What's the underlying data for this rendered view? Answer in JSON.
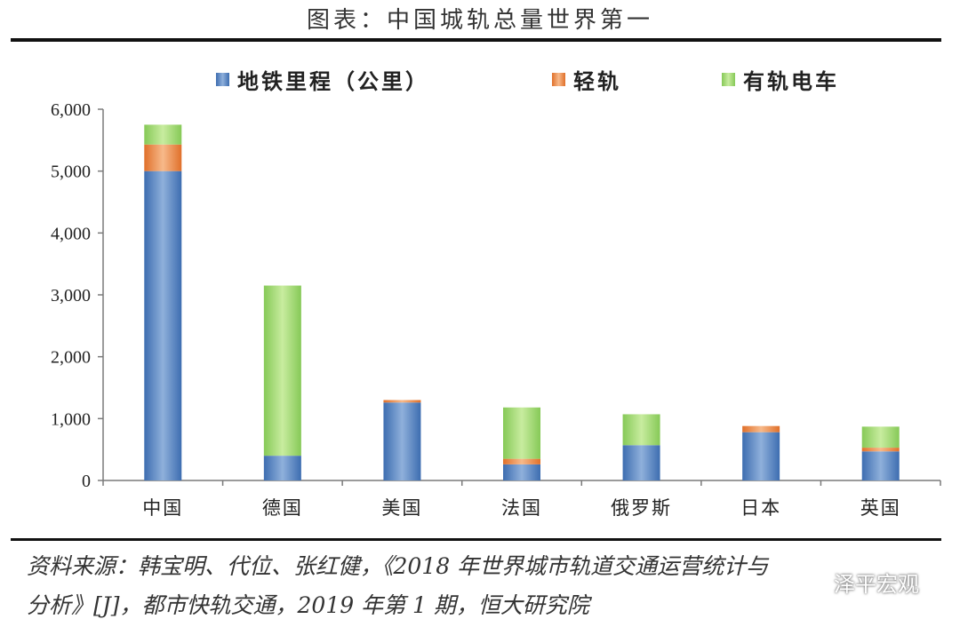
{
  "title": "图表：中国城轨总量世界第一",
  "chart_data": {
    "type": "bar",
    "stacked": true,
    "categories": [
      "中国",
      "德国",
      "美国",
      "法国",
      "俄罗斯",
      "日本",
      "英国"
    ],
    "series": [
      {
        "name": "地铁里程（公里）",
        "color": "#4f7fc0",
        "values": [
          5000,
          400,
          1260,
          260,
          570,
          780,
          470
        ]
      },
      {
        "name": "轻轨",
        "color": "#f08a3e",
        "values": [
          430,
          0,
          40,
          90,
          0,
          100,
          60
        ]
      },
      {
        "name": "有轨电车",
        "color": "#9bd86a",
        "values": [
          320,
          2750,
          0,
          830,
          500,
          0,
          340
        ]
      }
    ],
    "ylim": [
      0,
      6000
    ],
    "yticks": [
      0,
      1000,
      2000,
      3000,
      4000,
      5000,
      6000
    ],
    "ytick_labels": [
      "0",
      "1,000",
      "2,000",
      "3,000",
      "4,000",
      "5,000",
      "6,000"
    ],
    "legend_position": "top",
    "grid": false
  },
  "source": {
    "line1": "资料来源：韩宝明、代位、张红健，《2018 年世界城市轨道交通运营统计与",
    "line2": "分析》[J]，都市快轨交通，2019 年第 1 期，恒大研究院"
  },
  "watermark": {
    "text": "泽平宏观",
    "icon": "wechat-icon"
  }
}
